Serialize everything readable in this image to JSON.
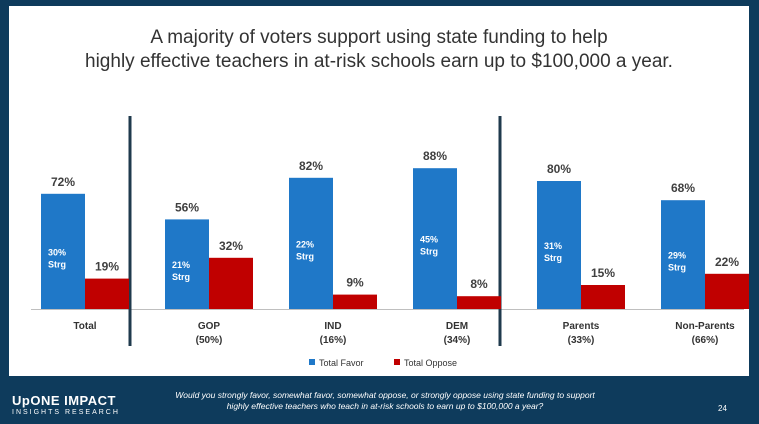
{
  "title": {
    "line1": "A majority of voters support using state funding to help",
    "line2": "highly effective teachers in at-risk schools earn up to $100,000 a year."
  },
  "colors": {
    "favor": "#1f78c8",
    "oppose": "#c00000",
    "background": "#0e3b5c"
  },
  "chart_data": {
    "type": "bar",
    "categories": [
      "Total",
      "GOP",
      "IND",
      "DEM",
      "Parents",
      "Non-Parents"
    ],
    "subcategories": [
      "",
      "(50%)",
      "(16%)",
      "(34%)",
      "(33%)",
      "(66%)"
    ],
    "series": [
      {
        "name": "Total Favor",
        "values": [
          72,
          56,
          82,
          88,
          80,
          68
        ]
      },
      {
        "name": "Total Oppose",
        "values": [
          19,
          32,
          9,
          8,
          15,
          22
        ]
      }
    ],
    "strong_favor": [
      "30%",
      "21%",
      "22%",
      "45%",
      "31%",
      "29%"
    ],
    "strong_label": "Strg",
    "value_suffix": "%",
    "legend_position": "bottom",
    "grid": false
  },
  "footer": {
    "logo_line1": "UpONE IMPACT",
    "logo_line2": "INSIGHTS RESEARCH",
    "question": "Would you strongly favor, somewhat favor, somewhat oppose, or strongly oppose using state funding to support highly effective teachers who teach in at-risk schools to earn up to $100,000 a year?",
    "page_number": "24"
  }
}
